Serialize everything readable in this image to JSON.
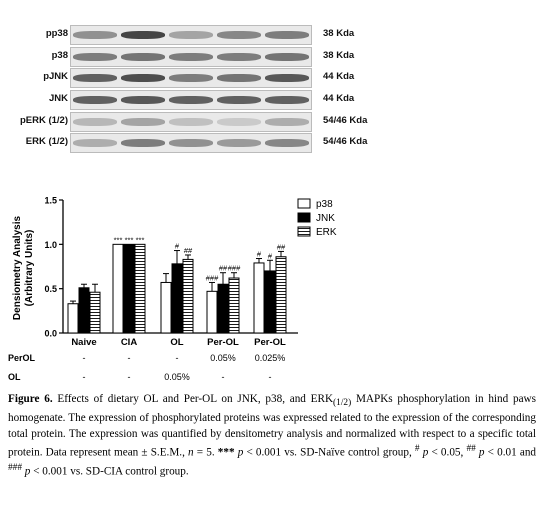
{
  "blots": [
    {
      "label": "pp38",
      "kda": "38 Kda"
    },
    {
      "label": "p38",
      "kda": "38 Kda"
    },
    {
      "label": "pJNK",
      "kda": "44 Kda"
    },
    {
      "label": "JNK",
      "kda": "44 Kda"
    },
    {
      "label": "pERK (1/2)",
      "kda": "54/46 Kda"
    },
    {
      "label": "ERK (1/2)",
      "kda": "54/46 Kda"
    }
  ],
  "chart_data": {
    "type": "bar",
    "ylabel": "Densiometry Analysis\n(Arbitrary Units)",
    "ylabel_lines": [
      "Densiometry Analysis",
      "(Arbitrary Units)"
    ],
    "ylim": [
      0,
      1.5
    ],
    "yticks": [
      "0.0",
      "0.5",
      "1.0",
      "1.5"
    ],
    "categories": [
      "Naive",
      "CIA",
      "OL",
      "Per-OL",
      "Per-OL"
    ],
    "series": [
      {
        "name": "p38",
        "values": [
          0.33,
          1.0,
          0.57,
          0.47,
          0.79
        ],
        "errors": [
          0.03,
          0.0,
          0.1,
          0.1,
          0.05
        ],
        "annot": [
          "",
          "***",
          "",
          "###",
          "#"
        ]
      },
      {
        "name": "JNK",
        "values": [
          0.51,
          1.0,
          0.78,
          0.55,
          0.7
        ],
        "errors": [
          0.04,
          0.0,
          0.15,
          0.13,
          0.12
        ],
        "annot": [
          "",
          "***",
          "#",
          "##",
          "#"
        ]
      },
      {
        "name": "ERK",
        "values": [
          0.46,
          1.0,
          0.83,
          0.62,
          0.86
        ],
        "errors": [
          0.09,
          0.0,
          0.05,
          0.06,
          0.06
        ],
        "annot": [
          "",
          "***",
          "##",
          "###",
          "##"
        ]
      }
    ],
    "treatment_rows": [
      {
        "label": "PerOL",
        "cells": [
          "-",
          "-",
          "-",
          "0.05%",
          "0.025%"
        ]
      },
      {
        "label": "OL",
        "cells": [
          "-",
          "-",
          "0.05%",
          "-",
          "-"
        ]
      }
    ]
  },
  "caption": {
    "figure_label": "Figure 6.",
    "text_1": " Effects of dietary OL and Per-OL on JNK, p38, and ERK",
    "sub_1": "(1/2)",
    "text_2": " MAPKs phosphorylation in hind paws homogenate. The expression of phosphorylated proteins was expressed related to the expression of the corresponding total protein. The expression was quantified by densitometry analysis and normalized with respect to a specific total protein. Data represent mean ± S.E.M., ",
    "n_italic": "n",
    "text_3": " = 5. ",
    "stars": "***",
    "p1": " p",
    "text_4": " < 0.001 vs. SD-Naïve control group, ",
    "sup_1": "#",
    "p2": " p",
    "text_5": " < 0.05, ",
    "sup_2": "##",
    "p3": " p",
    "text_6": " < 0.01 and ",
    "sup_3": "###",
    "p4": " p",
    "text_7": " < 0.001 vs. SD-CIA control group."
  }
}
